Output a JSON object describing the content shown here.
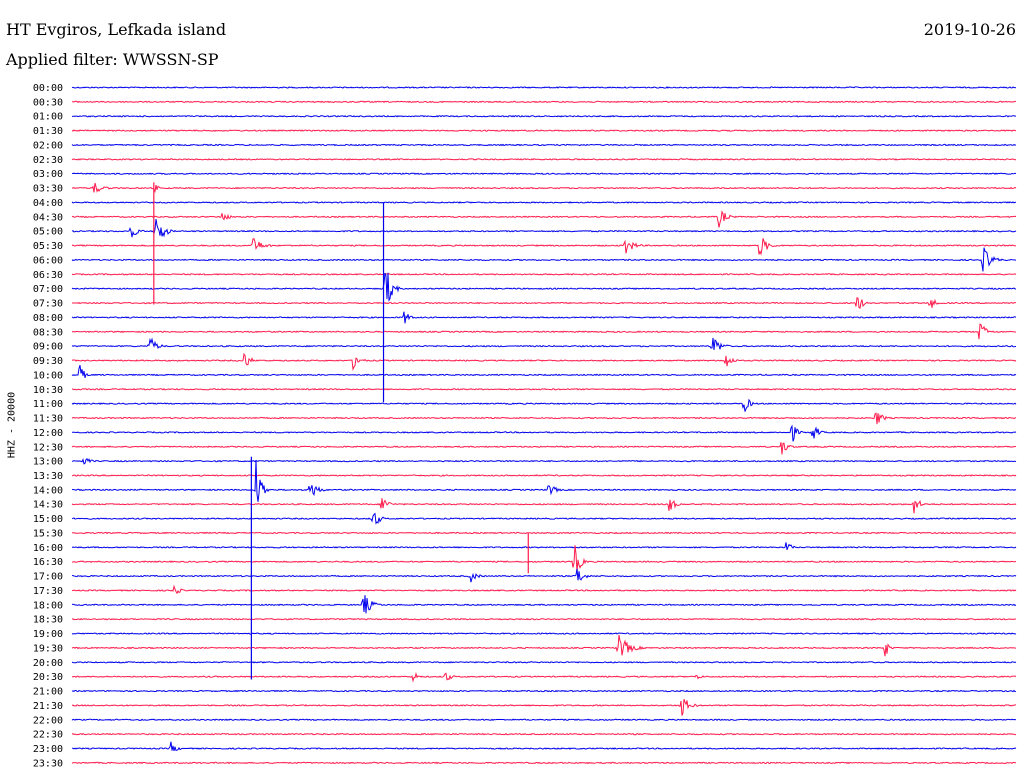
{
  "header": {
    "station": "HT Evgiros, Lefkada island",
    "date": "2019-10-26",
    "filter": "Applied filter: WWSSN-SP"
  },
  "colors": {
    "even": "#0000ee",
    "odd": "#ff1a4b"
  },
  "chart_data": {
    "type": "line",
    "title": "HT Evgiros, Lefkada island",
    "subtitle": "Applied filter: WWSSN-SP",
    "date": "2019-10-26",
    "ylabel": "HHZ - 20000",
    "row_labels": [
      "00:00",
      "00:30",
      "01:00",
      "01:30",
      "02:00",
      "02:30",
      "03:00",
      "03:30",
      "04:00",
      "04:30",
      "05:00",
      "05:30",
      "06:00",
      "06:30",
      "07:00",
      "07:30",
      "08:00",
      "08:30",
      "09:00",
      "09:30",
      "10:00",
      "10:30",
      "11:00",
      "11:30",
      "12:00",
      "12:30",
      "13:00",
      "13:30",
      "14:00",
      "14:30",
      "15:00",
      "15:30",
      "16:00",
      "16:30",
      "17:00",
      "17:30",
      "18:00",
      "18:30",
      "19:00",
      "19:30",
      "20:00",
      "20:30",
      "21:00",
      "21:30",
      "22:00",
      "22:30",
      "23:00",
      "23:30"
    ],
    "row_minutes": 30,
    "x_range_minutes": [
      0,
      30
    ],
    "grid": false,
    "events": [
      {
        "row": 7,
        "minute": 0.6,
        "amp": 0.5,
        "dur": 0.8
      },
      {
        "row": 7,
        "minute": 2.6,
        "amp": 0.4,
        "dur": 0.3
      },
      {
        "row": 10,
        "minute": 1.8,
        "amp": 0.6,
        "dur": 0.6
      },
      {
        "row": 10,
        "minute": 2.6,
        "amp": 1.6,
        "dur": 0.6
      },
      {
        "row": 9,
        "minute": 4.7,
        "amp": 0.6,
        "dur": 0.5
      },
      {
        "row": 9,
        "minute": 20.5,
        "amp": 0.8,
        "dur": 0.6
      },
      {
        "row": 11,
        "minute": 5.7,
        "amp": 0.6,
        "dur": 0.8
      },
      {
        "row": 11,
        "minute": 17.5,
        "amp": 0.8,
        "dur": 0.7
      },
      {
        "row": 11,
        "minute": 21.8,
        "amp": 1.0,
        "dur": 0.6
      },
      {
        "row": 12,
        "minute": 28.9,
        "amp": 1.0,
        "dur": 0.7
      },
      {
        "row": 14,
        "minute": 9.9,
        "amp": 2.2,
        "dur": 0.5
      },
      {
        "row": 15,
        "minute": 24.9,
        "amp": 0.8,
        "dur": 0.5
      },
      {
        "row": 15,
        "minute": 27.2,
        "amp": 0.6,
        "dur": 0.5
      },
      {
        "row": 16,
        "minute": 10.5,
        "amp": 0.6,
        "dur": 0.5
      },
      {
        "row": 17,
        "minute": 28.8,
        "amp": 1.0,
        "dur": 0.5
      },
      {
        "row": 18,
        "minute": 2.4,
        "amp": 0.8,
        "dur": 0.6
      },
      {
        "row": 18,
        "minute": 20.3,
        "amp": 1.0,
        "dur": 0.6
      },
      {
        "row": 19,
        "minute": 5.4,
        "amp": 0.9,
        "dur": 0.5
      },
      {
        "row": 19,
        "minute": 8.9,
        "amp": 0.8,
        "dur": 0.5
      },
      {
        "row": 19,
        "minute": 20.7,
        "amp": 0.8,
        "dur": 0.5
      },
      {
        "row": 20,
        "minute": 0.2,
        "amp": 0.9,
        "dur": 0.4
      },
      {
        "row": 22,
        "minute": 21.3,
        "amp": 0.8,
        "dur": 0.5
      },
      {
        "row": 23,
        "minute": 25.5,
        "amp": 0.8,
        "dur": 0.5
      },
      {
        "row": 24,
        "minute": 22.8,
        "amp": 1.2,
        "dur": 0.4
      },
      {
        "row": 24,
        "minute": 23.5,
        "amp": 1.0,
        "dur": 0.4
      },
      {
        "row": 25,
        "minute": 22.5,
        "amp": 0.7,
        "dur": 0.5
      },
      {
        "row": 26,
        "minute": 0.3,
        "amp": 0.3,
        "dur": 0.7
      },
      {
        "row": 28,
        "minute": 5.8,
        "amp": 2.5,
        "dur": 0.5
      },
      {
        "row": 28,
        "minute": 7.5,
        "amp": 0.9,
        "dur": 0.6
      },
      {
        "row": 28,
        "minute": 15.1,
        "amp": 0.5,
        "dur": 0.6
      },
      {
        "row": 29,
        "minute": 9.8,
        "amp": 0.8,
        "dur": 0.5
      },
      {
        "row": 29,
        "minute": 18.9,
        "amp": 0.8,
        "dur": 0.5
      },
      {
        "row": 29,
        "minute": 26.7,
        "amp": 0.8,
        "dur": 0.5
      },
      {
        "row": 30,
        "minute": 9.5,
        "amp": 1.0,
        "dur": 0.5
      },
      {
        "row": 32,
        "minute": 22.6,
        "amp": 0.6,
        "dur": 0.5
      },
      {
        "row": 33,
        "minute": 15.9,
        "amp": 1.6,
        "dur": 0.5
      },
      {
        "row": 34,
        "minute": 12.6,
        "amp": 0.5,
        "dur": 0.6
      },
      {
        "row": 34,
        "minute": 16.0,
        "amp": 0.9,
        "dur": 0.5
      },
      {
        "row": 35,
        "minute": 3.2,
        "amp": 0.6,
        "dur": 0.4
      },
      {
        "row": 36,
        "minute": 9.2,
        "amp": 0.9,
        "dur": 0.7
      },
      {
        "row": 39,
        "minute": 17.3,
        "amp": 1.0,
        "dur": 0.9
      },
      {
        "row": 39,
        "minute": 25.8,
        "amp": 1.0,
        "dur": 0.3
      },
      {
        "row": 41,
        "minute": 10.8,
        "amp": 0.5,
        "dur": 0.4
      },
      {
        "row": 41,
        "minute": 11.8,
        "amp": 0.5,
        "dur": 0.5
      },
      {
        "row": 41,
        "minute": 19.8,
        "amp": 0.3,
        "dur": 0.4
      },
      {
        "row": 43,
        "minute": 19.3,
        "amp": 1.0,
        "dur": 0.6
      },
      {
        "row": 46,
        "minute": 3.1,
        "amp": 0.5,
        "dur": 0.5
      }
    ],
    "spikes": [
      {
        "row": 7,
        "minute": 2.6,
        "up": 0.4,
        "down": 8.1
      },
      {
        "row": 8,
        "minute": 9.9,
        "up": 0.0,
        "down": 13.9
      },
      {
        "row": 26,
        "minute": 5.7,
        "up": 0.3,
        "down": 15.2
      },
      {
        "row": 31,
        "minute": 14.5,
        "up": 0.0,
        "down": 2.8
      }
    ]
  }
}
